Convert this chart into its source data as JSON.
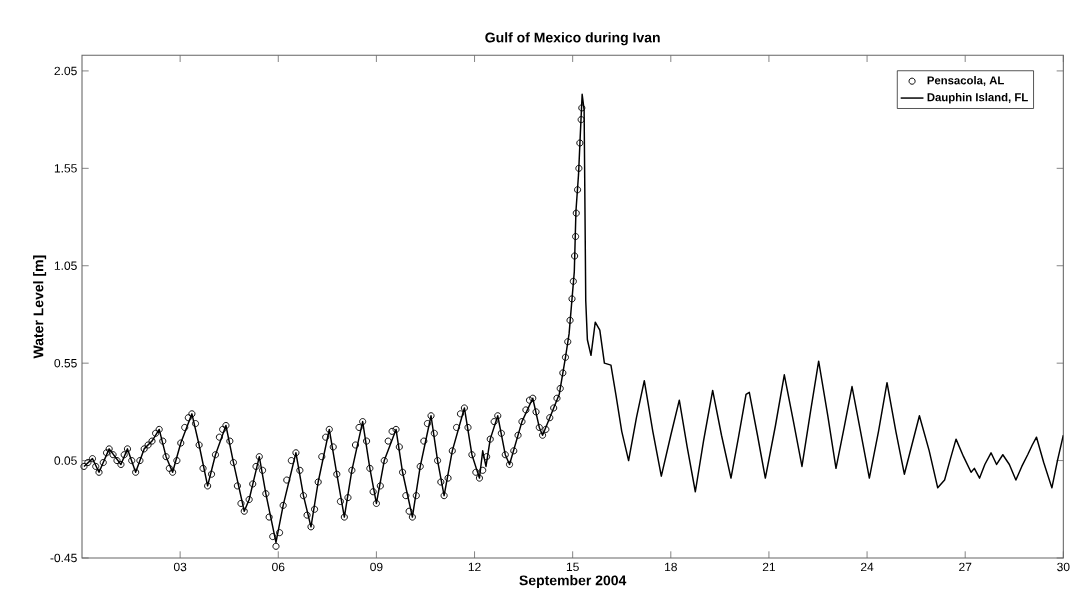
{
  "chart_data": {
    "type": "line",
    "title": "Gulf of Mexico during Ivan",
    "xlabel": "September 2004",
    "ylabel": "Water Level [m]",
    "xlim": [
      0,
      30
    ],
    "ylim": [
      -0.45,
      2.13
    ],
    "xticks": [
      {
        "value": 3,
        "label": "03"
      },
      {
        "value": 6,
        "label": "06"
      },
      {
        "value": 9,
        "label": "09"
      },
      {
        "value": 12,
        "label": "12"
      },
      {
        "value": 15,
        "label": "15"
      },
      {
        "value": 18,
        "label": "18"
      },
      {
        "value": 21,
        "label": "21"
      },
      {
        "value": 24,
        "label": "24"
      },
      {
        "value": 27,
        "label": "27"
      },
      {
        "value": 30,
        "label": "30"
      }
    ],
    "yticks": [
      -0.45,
      0.05,
      0.55,
      1.05,
      1.55,
      2.05
    ],
    "legend": "top right",
    "series": [
      {
        "name": "Pensacola, AL",
        "type": "scatter",
        "marker": "circle",
        "color": "#000000",
        "x": [
          0.06,
          0.18,
          0.32,
          0.42,
          0.52,
          0.65,
          0.75,
          0.83,
          0.95,
          1.07,
          1.19,
          1.29,
          1.39,
          1.52,
          1.64,
          1.77,
          1.9,
          2.02,
          2.14,
          2.25,
          2.36,
          2.47,
          2.57,
          2.67,
          2.77,
          2.9,
          3.02,
          3.14,
          3.25,
          3.36,
          3.47,
          3.58,
          3.7,
          3.84,
          3.96,
          4.08,
          4.2,
          4.3,
          4.4,
          4.52,
          4.63,
          4.75,
          4.86,
          4.96,
          5.11,
          5.22,
          5.32,
          5.42,
          5.52,
          5.62,
          5.72,
          5.83,
          5.93,
          6.04,
          6.15,
          6.26,
          6.4,
          6.54,
          6.66,
          6.77,
          6.88,
          7.0,
          7.11,
          7.22,
          7.33,
          7.45,
          7.56,
          7.68,
          7.79,
          7.9,
          8.02,
          8.13,
          8.25,
          8.36,
          8.47,
          8.58,
          8.7,
          8.8,
          8.9,
          9.0,
          9.12,
          9.24,
          9.36,
          9.48,
          9.6,
          9.7,
          9.8,
          9.9,
          10.0,
          10.1,
          10.22,
          10.34,
          10.45,
          10.56,
          10.67,
          10.77,
          10.87,
          10.97,
          11.07,
          11.19,
          11.32,
          11.45,
          11.57,
          11.69,
          11.8,
          11.92,
          12.04,
          12.15,
          12.25,
          12.37,
          12.48,
          12.6,
          12.71,
          12.82,
          12.94,
          13.07,
          13.2,
          13.33,
          13.45,
          13.57,
          13.68,
          13.78,
          13.88,
          13.98,
          14.08,
          14.18,
          14.3,
          14.42,
          14.52,
          14.62,
          14.7,
          14.78,
          14.85,
          14.92,
          14.98,
          15.02,
          15.06,
          15.09,
          15.11,
          15.15,
          15.19,
          15.22,
          15.26,
          15.28
        ],
        "values": [
          0.02,
          0.04,
          0.06,
          0.02,
          -0.01,
          0.04,
          0.09,
          0.11,
          0.08,
          0.05,
          0.03,
          0.08,
          0.11,
          0.05,
          -0.01,
          0.05,
          0.11,
          0.13,
          0.15,
          0.19,
          0.21,
          0.15,
          0.07,
          0.01,
          -0.01,
          0.05,
          0.14,
          0.22,
          0.27,
          0.29,
          0.24,
          0.13,
          0.01,
          -0.08,
          -0.02,
          0.08,
          0.17,
          0.21,
          0.23,
          0.15,
          0.04,
          -0.08,
          -0.17,
          -0.21,
          -0.15,
          -0.07,
          0.02,
          0.07,
          0.0,
          -0.12,
          -0.24,
          -0.34,
          -0.39,
          -0.32,
          -0.18,
          -0.05,
          0.05,
          0.09,
          0.0,
          -0.13,
          -0.23,
          -0.29,
          -0.2,
          -0.06,
          0.07,
          0.17,
          0.21,
          0.12,
          -0.02,
          -0.16,
          -0.24,
          -0.14,
          0.0,
          0.13,
          0.22,
          0.25,
          0.15,
          0.01,
          -0.11,
          -0.17,
          -0.08,
          0.05,
          0.15,
          0.2,
          0.21,
          0.12,
          -0.01,
          -0.13,
          -0.21,
          -0.24,
          -0.13,
          0.02,
          0.15,
          0.24,
          0.28,
          0.19,
          0.05,
          -0.06,
          -0.13,
          -0.04,
          0.1,
          0.22,
          0.29,
          0.32,
          0.22,
          0.08,
          -0.01,
          -0.04,
          0.0,
          0.07,
          0.16,
          0.25,
          0.28,
          0.19,
          0.08,
          0.03,
          0.1,
          0.18,
          0.25,
          0.31,
          0.36,
          0.37,
          0.3,
          0.22,
          0.18,
          0.21,
          0.27,
          0.32,
          0.37,
          0.42,
          0.5,
          0.58,
          0.66,
          0.77,
          0.88,
          0.97,
          1.1,
          1.2,
          1.32,
          1.44,
          1.55,
          1.68,
          1.8,
          1.86
        ]
      },
      {
        "name": "Dauphin Island, FL",
        "marker": "none",
        "color": "#000000",
        "x": [
          0.06,
          0.32,
          0.52,
          0.83,
          1.19,
          1.39,
          1.64,
          1.9,
          2.14,
          2.36,
          2.57,
          2.77,
          3.02,
          3.36,
          3.58,
          3.84,
          4.08,
          4.4,
          4.63,
          4.96,
          5.11,
          5.42,
          5.62,
          5.93,
          6.15,
          6.54,
          6.77,
          7.0,
          7.22,
          7.56,
          7.79,
          8.02,
          8.25,
          8.58,
          8.8,
          9.0,
          9.24,
          9.6,
          9.8,
          10.1,
          10.34,
          10.67,
          10.87,
          11.07,
          11.32,
          11.69,
          11.92,
          12.15,
          12.25,
          12.35,
          12.48,
          12.71,
          12.94,
          13.07,
          13.45,
          13.78,
          13.98,
          14.08,
          14.3,
          14.59,
          14.78,
          14.89,
          15.05,
          15.1,
          15.18,
          15.23,
          15.29,
          15.35,
          15.4,
          15.45,
          15.56,
          15.69,
          15.83,
          15.97,
          16.17,
          16.32,
          16.5,
          16.71,
          16.95,
          17.19,
          17.45,
          17.71,
          18.0,
          18.26,
          18.5,
          18.75,
          19.0,
          19.28,
          19.55,
          19.84,
          20.07,
          20.3,
          20.4,
          20.65,
          20.89,
          21.2,
          21.47,
          21.75,
          22.01,
          22.27,
          22.52,
          22.8,
          23.05,
          23.3,
          23.54,
          23.8,
          24.07,
          24.35,
          24.61,
          24.88,
          25.14,
          25.37,
          25.6,
          25.9,
          26.16,
          26.37,
          26.55,
          26.72,
          26.95,
          27.18,
          27.28,
          27.44,
          27.6,
          27.79,
          27.96,
          28.15,
          28.35,
          28.55,
          28.73,
          28.91,
          29.05,
          29.18,
          29.4,
          29.65,
          29.82,
          30.0
        ],
        "values": [
          0.02,
          0.06,
          -0.01,
          0.11,
          0.03,
          0.11,
          -0.01,
          0.11,
          0.15,
          0.21,
          0.07,
          -0.01,
          0.14,
          0.29,
          0.13,
          -0.08,
          0.08,
          0.23,
          0.04,
          -0.21,
          -0.15,
          0.07,
          -0.12,
          -0.37,
          -0.18,
          0.09,
          -0.13,
          -0.29,
          -0.06,
          0.21,
          -0.02,
          -0.24,
          0.0,
          0.25,
          0.01,
          -0.17,
          0.05,
          0.21,
          -0.01,
          -0.24,
          0.02,
          0.28,
          0.05,
          -0.13,
          0.1,
          0.32,
          0.08,
          -0.04,
          0.1,
          0.02,
          0.16,
          0.28,
          0.08,
          0.03,
          0.25,
          0.37,
          0.22,
          0.18,
          0.27,
          0.39,
          0.58,
          0.7,
          1.02,
          1.33,
          1.52,
          1.71,
          1.93,
          1.85,
          0.87,
          0.67,
          0.59,
          0.76,
          0.72,
          0.55,
          0.54,
          0.39,
          0.2,
          0.05,
          0.27,
          0.46,
          0.2,
          -0.03,
          0.18,
          0.36,
          0.12,
          -0.11,
          0.15,
          0.41,
          0.18,
          -0.04,
          0.17,
          0.39,
          0.4,
          0.18,
          -0.04,
          0.23,
          0.49,
          0.25,
          0.02,
          0.3,
          0.56,
          0.28,
          0.01,
          0.22,
          0.43,
          0.2,
          -0.04,
          0.2,
          0.45,
          0.2,
          -0.02,
          0.13,
          0.28,
          0.1,
          -0.09,
          -0.05,
          0.06,
          0.16,
          0.07,
          -0.01,
          0.01,
          -0.04,
          0.03,
          0.09,
          0.03,
          0.08,
          0.03,
          -0.05,
          0.02,
          0.08,
          0.13,
          0.17,
          0.04,
          -0.09,
          0.05,
          0.18
        ]
      }
    ]
  }
}
